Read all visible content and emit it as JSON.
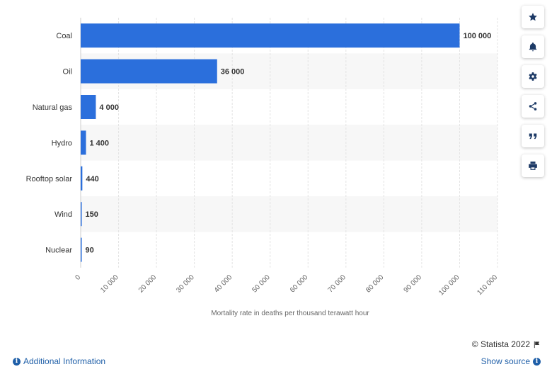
{
  "chart_data": {
    "type": "bar",
    "orientation": "horizontal",
    "categories": [
      "Coal",
      "Oil",
      "Natural gas",
      "Hydro",
      "Rooftop solar",
      "Wind",
      "Nuclear"
    ],
    "values": [
      100000,
      36000,
      4000,
      1400,
      440,
      150,
      90
    ],
    "value_labels": [
      "100 000",
      "36 000",
      "4 000",
      "1 400",
      "440",
      "150",
      "90"
    ],
    "xlabel": "Mortality rate in deaths per thousand terawatt hour",
    "ylabel": "",
    "xlim": [
      0,
      110000
    ],
    "ticks": [
      0,
      10000,
      20000,
      30000,
      40000,
      50000,
      60000,
      70000,
      80000,
      90000,
      100000,
      110000
    ],
    "tick_labels": [
      "0",
      "10 000",
      "20 000",
      "30 000",
      "40 000",
      "50 000",
      "60 000",
      "70 000",
      "80 000",
      "90 000",
      "100 000",
      "110 000"
    ],
    "grid": true,
    "bar_color": "#2b6fdc"
  },
  "sidebar": {
    "buttons": [
      {
        "name": "star-icon"
      },
      {
        "name": "bell-icon"
      },
      {
        "name": "gear-icon"
      },
      {
        "name": "share-icon"
      },
      {
        "name": "quote-icon"
      },
      {
        "name": "print-icon"
      }
    ]
  },
  "footer": {
    "additional_info": "Additional Information",
    "copyright": "© Statista 2022",
    "show_source": "Show source"
  }
}
